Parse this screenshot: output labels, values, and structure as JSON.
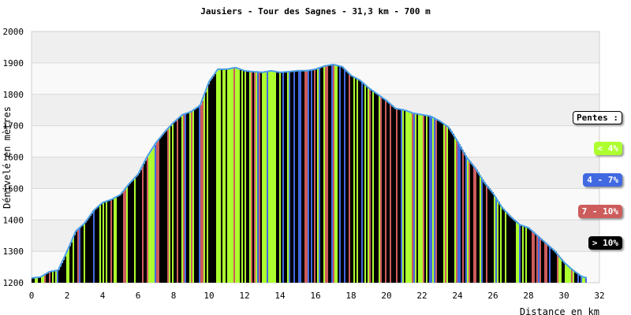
{
  "chart_data": {
    "type": "area",
    "title": "Jausiers - Tour des Sagnes - 31,3 km - 700 m",
    "xlabel": "Distance en km",
    "ylabel": "Dénivelé en mètres",
    "xlim": [
      0,
      32
    ],
    "ylim": [
      1200,
      2000
    ],
    "x_ticks": [
      "0",
      "2",
      "4",
      "6",
      "8",
      "10",
      "12",
      "14",
      "16",
      "18",
      "20",
      "22",
      "24",
      "26",
      "28",
      "30",
      "32"
    ],
    "y_ticks": [
      "1200",
      "1300",
      "1400",
      "1500",
      "1600",
      "1700",
      "1800",
      "1900",
      "2000"
    ],
    "grid": true,
    "legend_placement": "right",
    "profile": {
      "x": [
        0.0,
        0.5,
        1.0,
        1.5,
        2.0,
        2.5,
        3.0,
        3.5,
        4.0,
        4.5,
        5.0,
        5.5,
        6.0,
        6.5,
        7.0,
        7.5,
        8.0,
        8.5,
        9.0,
        9.5,
        10.0,
        10.5,
        11.0,
        11.5,
        12.0,
        12.5,
        13.0,
        13.5,
        14.0,
        14.5,
        15.0,
        15.5,
        16.0,
        16.5,
        17.0,
        17.5,
        18.0,
        18.5,
        19.0,
        19.5,
        20.0,
        20.5,
        21.0,
        21.5,
        22.0,
        22.5,
        23.0,
        23.5,
        24.0,
        24.5,
        25.0,
        25.5,
        26.0,
        26.5,
        27.0,
        27.5,
        28.0,
        28.5,
        29.0,
        29.5,
        30.0,
        30.5,
        31.0,
        31.3
      ],
      "y": [
        1215,
        1218,
        1235,
        1240,
        1300,
        1365,
        1390,
        1430,
        1455,
        1465,
        1480,
        1515,
        1545,
        1600,
        1645,
        1680,
        1710,
        1735,
        1745,
        1765,
        1840,
        1880,
        1880,
        1885,
        1875,
        1872,
        1870,
        1875,
        1870,
        1872,
        1875,
        1875,
        1880,
        1890,
        1895,
        1888,
        1860,
        1845,
        1820,
        1800,
        1780,
        1755,
        1750,
        1740,
        1735,
        1730,
        1715,
        1695,
        1650,
        1600,
        1565,
        1520,
        1485,
        1440,
        1410,
        1385,
        1375,
        1350,
        1325,
        1300,
        1265,
        1240,
        1220,
        1215
      ]
    },
    "slope_colors": [
      "#adff2f",
      "#4169e1",
      "#cd5c5c",
      "#000000"
    ],
    "series": [
      {
        "name": "< 4%",
        "color": "#adff2f"
      },
      {
        "name": "4 - 7%",
        "color": "#4169e1"
      },
      {
        "name": "7 - 10%",
        "color": "#cd5c5c"
      },
      {
        "name": "> 10%",
        "color": "#000000"
      }
    ],
    "legend_title": "Pentes :"
  },
  "colors": {
    "outline": "#4a9fe8",
    "band_dark": "#efefef",
    "band_light": "#f9f9f9",
    "grid": "#d9d9d9"
  }
}
